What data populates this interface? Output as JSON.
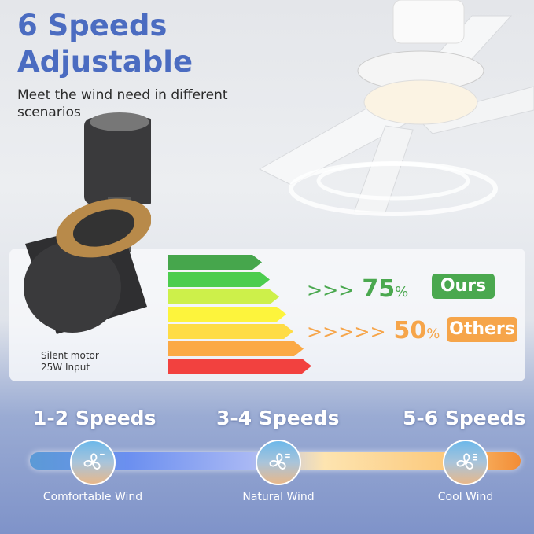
{
  "heading": {
    "line1": "6 Speeds",
    "line2": "Adjustable",
    "subtitle": "Meet the wind need in different scenarios",
    "color": "#4b6cc1"
  },
  "motor": {
    "caption_line1": "Silent motor",
    "caption_line2": "25W Input"
  },
  "efficiency": {
    "bar_colors": [
      "#46a64c",
      "#4ccd4f",
      "#cdf04a",
      "#fdf43c",
      "#fedc45",
      "#fba944",
      "#f2413f"
    ],
    "ours": {
      "arrows": ">>>",
      "value": "75",
      "unit": "%",
      "label": "Ours",
      "color": "#4aa84f"
    },
    "others": {
      "arrows": ">>>>>",
      "value": "50",
      "unit": "%",
      "label": "Others",
      "color": "#f6a54a"
    }
  },
  "speeds": [
    {
      "label": "1-2 Speeds",
      "wind": "Comfortable Wind",
      "icon": "fan-low-icon"
    },
    {
      "label": "3-4 Speeds",
      "wind": "Natural Wind",
      "icon": "fan-medium-icon"
    },
    {
      "label": "5-6 Speeds",
      "wind": "Cool Wind",
      "icon": "fan-high-icon"
    }
  ]
}
